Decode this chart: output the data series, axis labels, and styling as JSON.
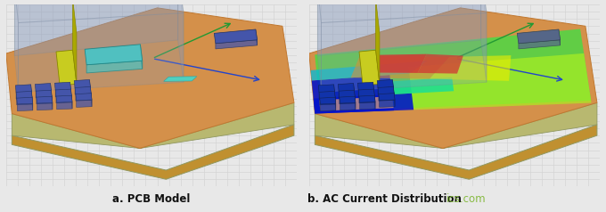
{
  "caption_left": "a. PCB Model",
  "caption_right": "b. AC Current Distribution",
  "watermark": "ics.com",
  "watermark_color": "#88bb44",
  "caption_color": "#111111",
  "caption_fontsize": 8.5,
  "figsize": [
    6.8,
    2.38
  ],
  "dpi": 100,
  "bg_color": "#e8e8e8",
  "grid_color": "#d4d4d4",
  "pcb_orange": "#d4904a",
  "pcb_orange_dark": "#c07830",
  "pcb_edge_top": "#b8b870",
  "pcb_edge_side": "#909860",
  "pcb_board_side": "#c09030",
  "glass_face": "#9aaabb",
  "glass_alpha": 0.35,
  "yellow_strip": "#c8cc20",
  "cyan_box": "#50c0c0",
  "blue_comp": "#4455aa",
  "blue_comp_dark": "#2233778",
  "red_line": "#ee2200",
  "blue_line": "#2244cc",
  "green_line": "#229933",
  "pcb_bottom_edge": "#a09060",
  "heat_blue_dark": "#0011cc",
  "heat_blue": "#2266ee",
  "heat_cyan": "#00bbdd",
  "heat_teal": "#00ddaa",
  "heat_green": "#44dd44",
  "heat_yellow_green": "#aaee22",
  "heat_yellow": "#eeee00",
  "heat_orange": "#ff8800",
  "heat_red": "#ee1100",
  "peach_box": "#e8a878"
}
